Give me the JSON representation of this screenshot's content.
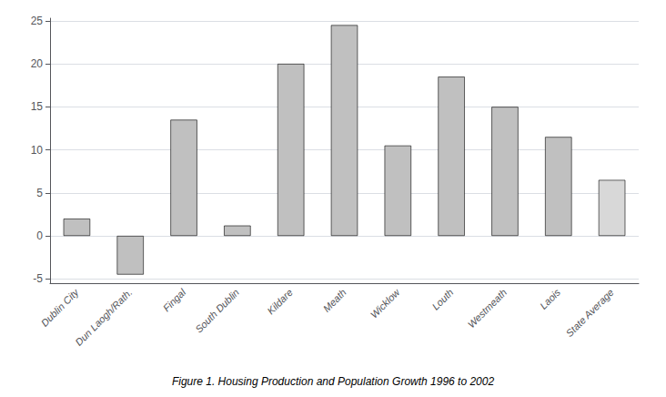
{
  "chart_data": {
    "type": "bar",
    "title": "Figure 1. Housing Production and Population Growth 1996 to 2002",
    "categories": [
      "Dublin City",
      "Dun Laogh/Rath.",
      "Fingal",
      "South Dublin",
      "Kildare",
      "Meath",
      "Wicklow",
      "Louth",
      "Westmeath",
      "Laois",
      "State Average"
    ],
    "values": [
      2.0,
      -4.5,
      13.5,
      1.2,
      20.0,
      24.5,
      10.5,
      18.5,
      15.0,
      11.5,
      6.5
    ],
    "colors": [
      "#c0c0c0",
      "#c0c0c0",
      "#c0c0c0",
      "#c0c0c0",
      "#c0c0c0",
      "#c0c0c0",
      "#c0c0c0",
      "#c0c0c0",
      "#c0c0c0",
      "#c0c0c0",
      "#d8d8d8"
    ],
    "ylim": [
      -5.5,
      25.3
    ],
    "yticks": [
      -5,
      0,
      5,
      10,
      15,
      20,
      25
    ],
    "grid": true
  }
}
